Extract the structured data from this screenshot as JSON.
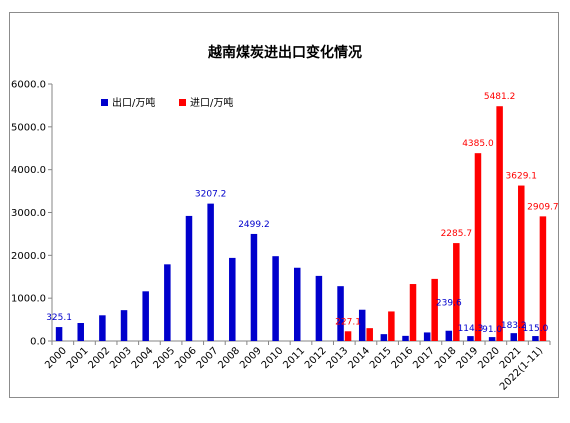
{
  "chart_data": {
    "type": "bar",
    "title": "越南煤炭进出口变化情况",
    "categories": [
      "2000",
      "2001",
      "2002",
      "2003",
      "2004",
      "2005",
      "2006",
      "2007",
      "2008",
      "2009",
      "2010",
      "2011",
      "2012",
      "2013",
      "2014",
      "2015",
      "2016",
      "2017",
      "2018",
      "2019",
      "2020",
      "2021",
      "2022(1-11)"
    ],
    "series": [
      {
        "name": "出口/万吨",
        "color": "#0000cc",
        "values": [
          325.1,
          420,
          600,
          720,
          1160,
          1790,
          2920,
          3207.2,
          1940,
          2499.2,
          1980,
          1710,
          1520,
          1280,
          730,
          160,
          120,
          200,
          239.6,
          114.3,
          91.0,
          183.2,
          115.0
        ]
      },
      {
        "name": "进口/万吨",
        "color": "#ff0000",
        "values": [
          null,
          null,
          null,
          null,
          null,
          null,
          null,
          null,
          null,
          null,
          null,
          null,
          null,
          227.1,
          300,
          690,
          1330,
          1450,
          2285.7,
          4385.0,
          5481.2,
          3629.1,
          2909.7
        ]
      }
    ],
    "ylim": [
      0,
      6000
    ],
    "yticks": [
      "0.0",
      "1000.0",
      "2000.0",
      "3000.0",
      "4000.0",
      "5000.0",
      "6000.0"
    ],
    "data_labels": [
      {
        "series": 0,
        "index": 0,
        "text": "325.1"
      },
      {
        "series": 0,
        "index": 7,
        "text": "3207.2"
      },
      {
        "series": 0,
        "index": 9,
        "text": "2499.2"
      },
      {
        "series": 0,
        "index": 18,
        "text": "239.6"
      },
      {
        "series": 0,
        "index": 19,
        "text": "114.3"
      },
      {
        "series": 0,
        "index": 20,
        "text": "91.0"
      },
      {
        "series": 0,
        "index": 21,
        "text": "183.2"
      },
      {
        "series": 0,
        "index": 22,
        "text": "115.0"
      },
      {
        "series": 1,
        "index": 13,
        "text": "227.1"
      },
      {
        "series": 1,
        "index": 18,
        "text": "2285.7"
      },
      {
        "series": 1,
        "index": 19,
        "text": "4385.0"
      },
      {
        "series": 1,
        "index": 20,
        "text": "5481.2"
      },
      {
        "series": 1,
        "index": 21,
        "text": "3629.1"
      },
      {
        "series": 1,
        "index": 22,
        "text": "2909.7"
      }
    ],
    "legend_position": "top-left",
    "grid": false
  }
}
